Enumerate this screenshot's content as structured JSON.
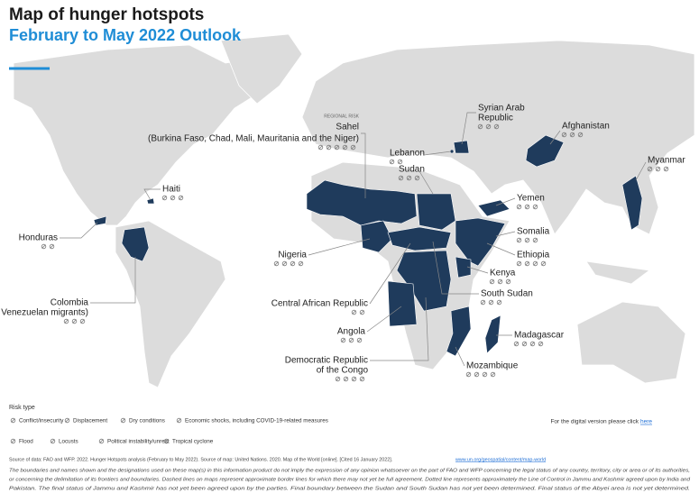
{
  "header": {
    "title": "Map of hunger hotspots",
    "subtitle": "February to May 2022 Outlook"
  },
  "regional_risk": {
    "tag": "REGIONAL RISK",
    "label": "Sahel",
    "detail": "(Burkina Faso, Chad, Mali, Mauritania and the Niger)"
  },
  "hotspots": [
    {
      "lines": [
        "Syrian Arab",
        "Republic"
      ]
    },
    {
      "lines": [
        "Afghanistan"
      ]
    },
    {
      "lines": [
        "Lebanon"
      ]
    },
    {
      "lines": [
        "Sudan"
      ]
    },
    {
      "lines": [
        "Yemen"
      ]
    },
    {
      "lines": [
        "Myanmar"
      ]
    },
    {
      "lines": [
        "Haiti"
      ]
    },
    {
      "lines": [
        "Honduras"
      ]
    },
    {
      "lines": [
        "Somalia"
      ]
    },
    {
      "lines": [
        "Ethiopia"
      ]
    },
    {
      "lines": [
        "Kenya"
      ]
    },
    {
      "lines": [
        "Nigeria"
      ]
    },
    {
      "lines": [
        "Central African Republic"
      ]
    },
    {
      "lines": [
        "South Sudan"
      ]
    },
    {
      "lines": [
        "Angola"
      ]
    },
    {
      "lines": [
        "Madagascar"
      ]
    },
    {
      "lines": [
        "Democratic Republic",
        "of the Congo"
      ]
    },
    {
      "lines": [
        "Mozambique"
      ]
    },
    {
      "lines": [
        "Colombia",
        "(incl. Venezuelan migrants)"
      ]
    }
  ],
  "legend": {
    "title": "Risk type",
    "items": [
      "Conflict/insecurity",
      "Displacement",
      "Dry conditions",
      "Economic shocks, including COVID-19-related measures",
      "Flood",
      "Locusts",
      "Political instability/unrest",
      "Tropical cyclone"
    ]
  },
  "digital_note": {
    "text": "For the digital version please click",
    "link": "here"
  },
  "footer": {
    "source": "Source of data: FAO and WFP. 2022. Hunger Hotspots analysis (February to May 2022). Source of map: United Nations. 2020. Map of the World [online]. [Cited 16 January 2022].",
    "link": "www.un.org/geospatial/content/map-world",
    "disclaimer": [
      "The boundaries and names shown and the designations used on these map(s) in this information product do not imply the expression of any opinion whatsoever on the part of FAO and WFP concerning the legal status of any country, territory, city or area or of its authorities,",
      "or concerning the delimitation of its frontiers and boundaries. Dashed lines on maps represent approximate border lines for which there may not yet be full agreement. Dotted line represents approximately the Line of Control in Jammu and Kashmir agreed upon by India and",
      "Pakistan. The final status of Jammu and Kashmir has not yet been agreed upon by the parties. Final boundary between the Sudan and South Sudan has not yet been determined. Final status of the Abyei area is not yet determined."
    ]
  }
}
